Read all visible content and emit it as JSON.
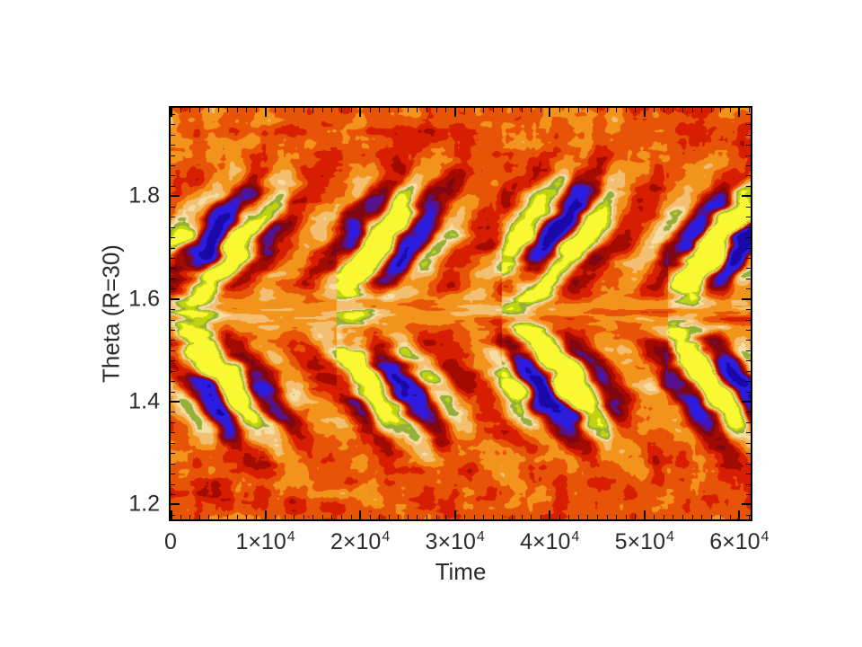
{
  "slide": {
    "background": "#ffffff"
  },
  "chart_data": {
    "type": "heatmap",
    "title": "",
    "xlabel": "Time",
    "ylabel": "Theta (R=30)",
    "xlim": [
      0,
      61200
    ],
    "ylim": [
      1.171,
      1.972
    ],
    "x_major_ticks": [
      0,
      10000,
      20000,
      30000,
      40000,
      50000,
      60000
    ],
    "x_tick_labels": [
      {
        "base": "0",
        "sup": ""
      },
      {
        "base": "1×10",
        "sup": "4"
      },
      {
        "base": "2×10",
        "sup": "4"
      },
      {
        "base": "3×10",
        "sup": "4"
      },
      {
        "base": "4×10",
        "sup": "4"
      },
      {
        "base": "5×10",
        "sup": "4"
      },
      {
        "base": "6×10",
        "sup": "4"
      }
    ],
    "x_minor_step": 1000,
    "y_major_ticks": [
      1.2,
      1.4,
      1.6,
      1.8
    ],
    "y_tick_labels": [
      "1.2",
      "1.4",
      "1.6",
      "1.8"
    ],
    "y_minor_step": 0.02,
    "grid": false,
    "legend": "none",
    "axis_color": "#000000",
    "label_color": "#2b2b2b",
    "description": "Filled-contour time-latitude (butterfly) diagram: red/orange background with alternating blue and yellow branches drifting away from the mid line theta~1.57 over time; dark-red wispy band along the mid line; flame-like red/orange streaks toward top and bottom edges; roughly three activity cycles across the time axis.",
    "palette": [
      {
        "name": "navy",
        "hex": "#1a09a8"
      },
      {
        "name": "blue",
        "hex": "#2b1ce0"
      },
      {
        "name": "indigo",
        "hex": "#56128e"
      },
      {
        "name": "maroon",
        "hex": "#7e0713"
      },
      {
        "name": "dark-red",
        "hex": "#a30b00"
      },
      {
        "name": "red",
        "hex": "#d71e00"
      },
      {
        "name": "orange-red",
        "hex": "#e85407"
      },
      {
        "name": "orange",
        "hex": "#f2941c"
      },
      {
        "name": "tan",
        "hex": "#f3bf72"
      },
      {
        "name": "cream",
        "hex": "#f6dda4"
      },
      {
        "name": "olive",
        "hex": "#95b03a"
      },
      {
        "name": "green-yellow",
        "hex": "#bfd40e"
      },
      {
        "name": "yellow",
        "hex": "#f9f832"
      }
    ],
    "pattern": {
      "seed": 7,
      "equator_theta": 1.573,
      "stripe_period_t": 7200,
      "stripe_drift": 2.5e-05,
      "south_phase_offset": 0.9,
      "band_center": 0.145,
      "band_width": 0.105,
      "grand_period_t": 17500,
      "grand_lag": 26000,
      "equator_halfwidth": 0.03,
      "burst_t_offset": 2200,
      "burst_t_width": 2600,
      "thresholds": [
        -0.6,
        -0.34,
        -0.22,
        -0.1,
        0.04,
        0.18,
        0.34,
        0.5,
        0.62,
        0.7,
        0.78,
        0.88
      ]
    }
  }
}
